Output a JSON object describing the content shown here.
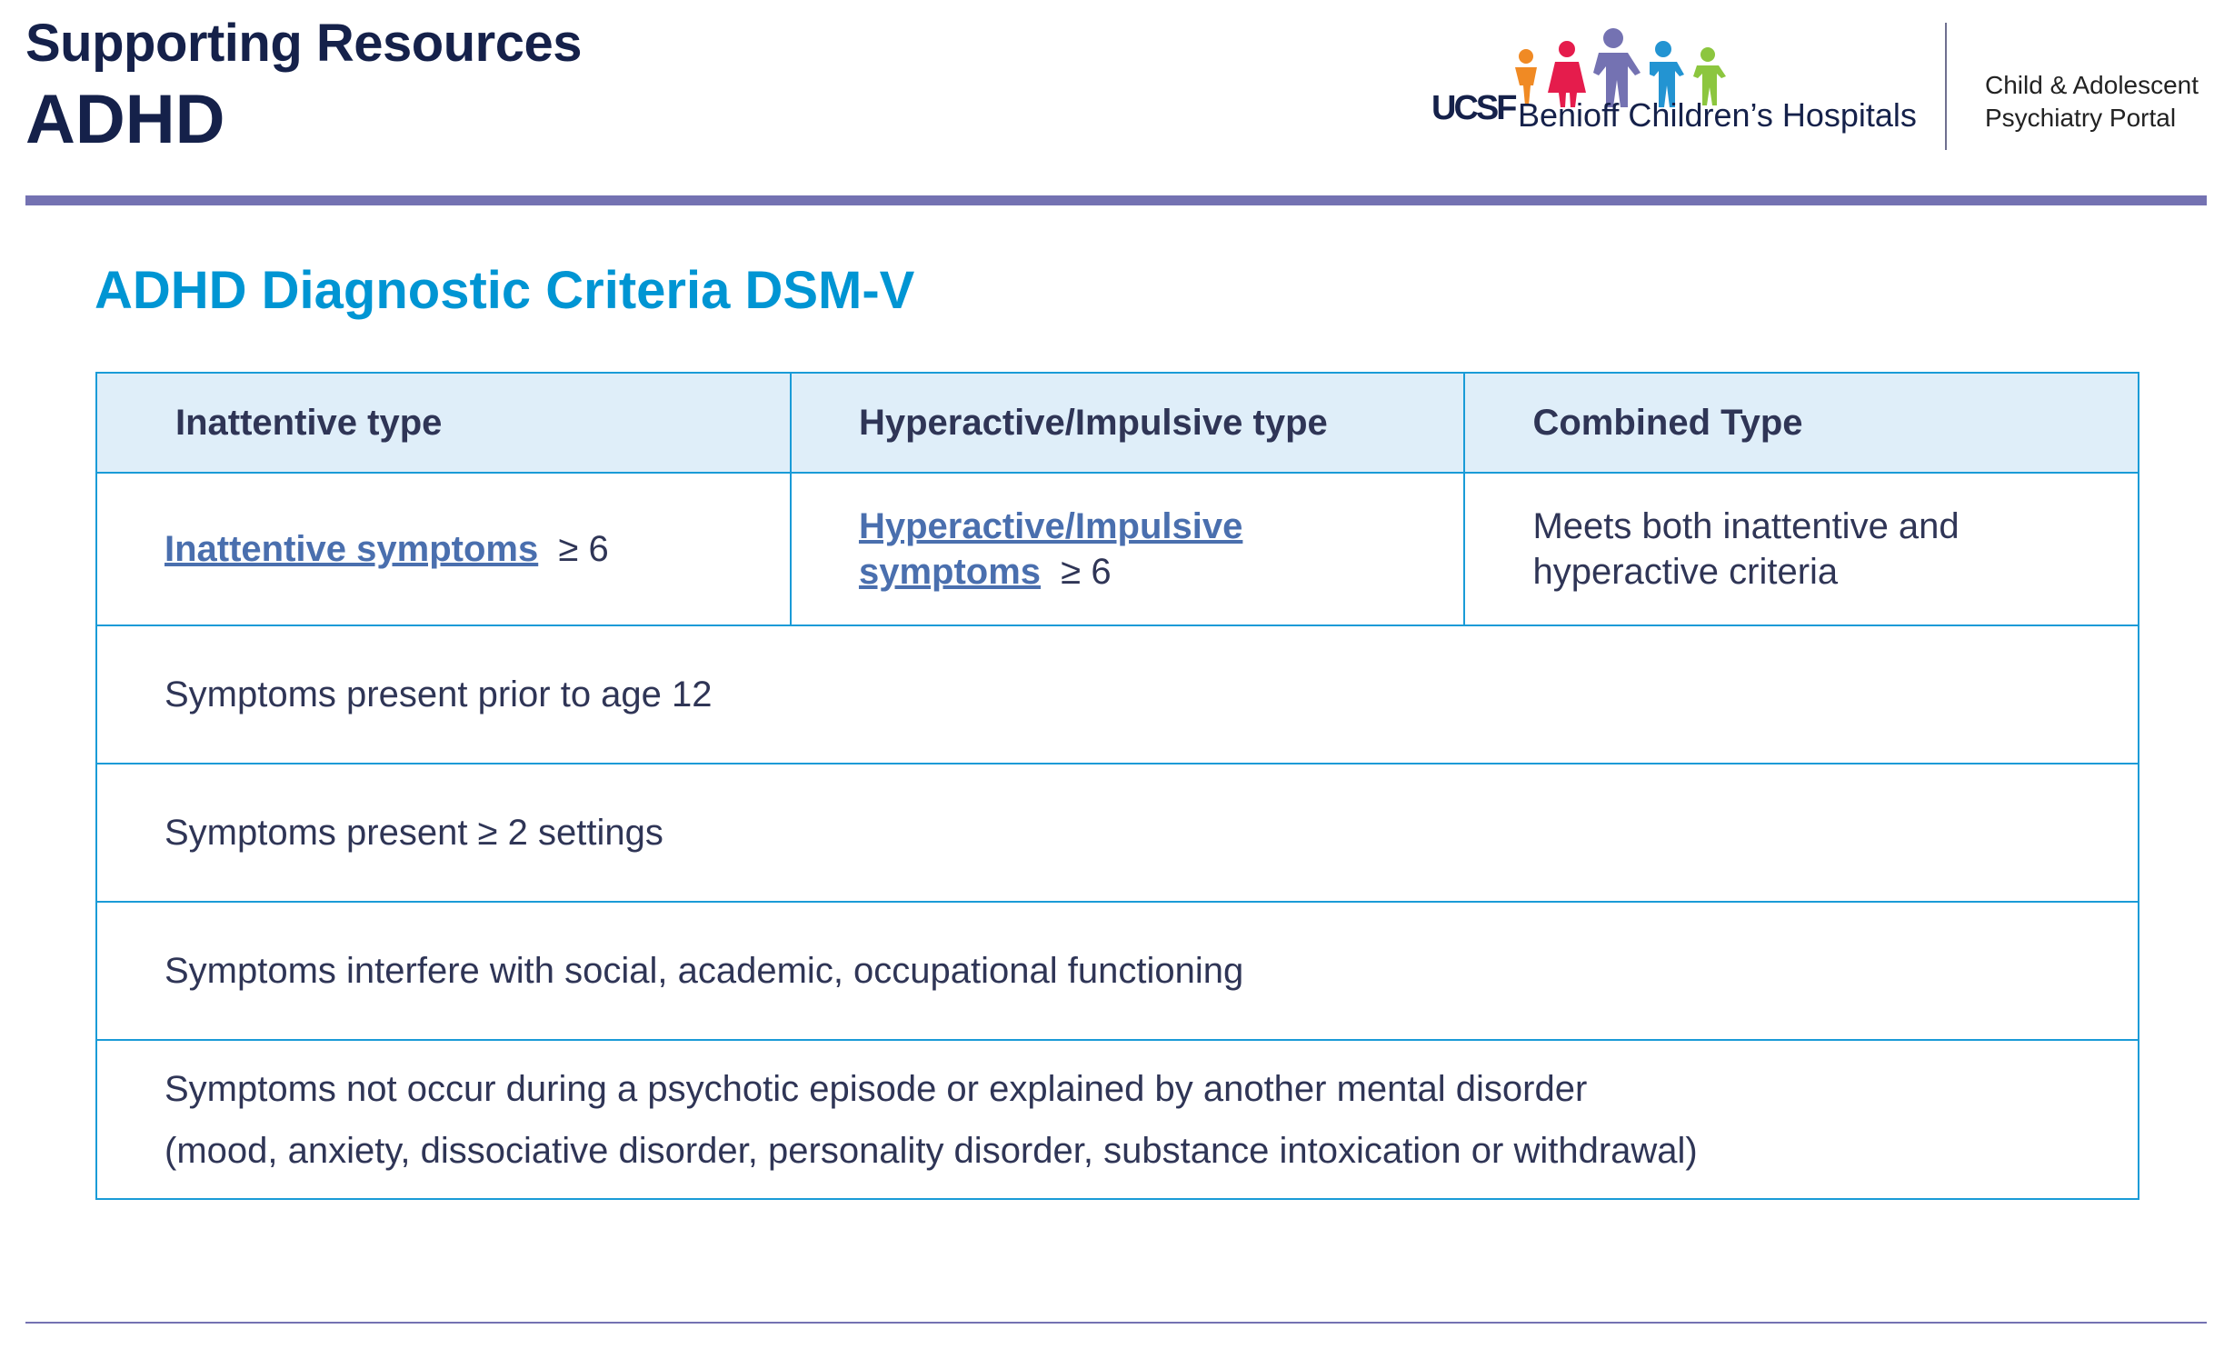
{
  "header": {
    "supertitle": "Supporting Resources",
    "title": "ADHD",
    "logo_ucsf": "UCSF",
    "logo_hospital": "Benioff Children’s Hospitals",
    "portal_line1": "Child & Adolescent",
    "portal_line2": "Psychiatry Portal",
    "accent_color": "#7472b2"
  },
  "section": {
    "title": "ADHD Diagnostic Criteria DSM-V",
    "title_color": "#0095d3"
  },
  "table": {
    "headers": [
      "Inattentive type",
      "Hyperactive/Impulsive type",
      "Combined Type"
    ],
    "type_row": {
      "inattentive_link": "Inattentive symptoms",
      "inattentive_suffix": "≥ 6",
      "hyperactive_link_line1": "Hyperactive/Impulsive",
      "hyperactive_link_line2": "symptoms",
      "hyperactive_suffix": "≥ 6",
      "combined_line1": "Meets both inattentive and",
      "combined_line2": "hyperactive criteria"
    },
    "rows": [
      "Symptoms present prior to age 12",
      "Symptoms present ≥ 2 settings",
      "Symptoms interfere with social, academic, occupational functioning"
    ],
    "last_row_line1": "Symptoms not occur during a psychotic episode or explained by another mental disorder",
    "last_row_line2": "(mood, anxiety, dissociative disorder, personality disorder, substance intoxication or withdrawal)",
    "border_color": "#1a9bd7",
    "header_bg": "#dfeef9",
    "link_color": "#4a6fae"
  }
}
